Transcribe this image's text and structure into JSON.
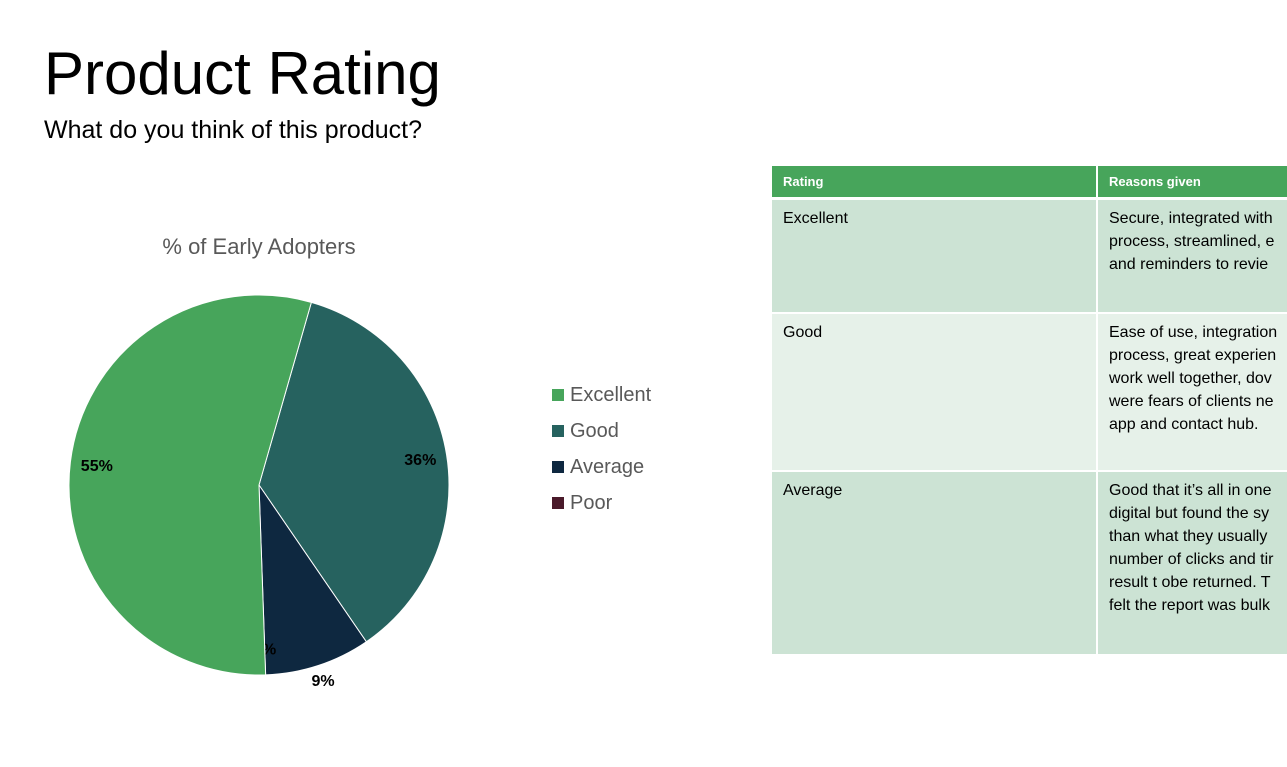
{
  "page": {
    "title": "Product Rating",
    "subtitle": "What do you think of this product?"
  },
  "chart_data": {
    "type": "pie",
    "title": "% of Early Adopters",
    "categories": [
      "Excellent",
      "Good",
      "Average",
      "Poor"
    ],
    "values": [
      55,
      36,
      9,
      0
    ],
    "data_labels": [
      "55%",
      "36%",
      "9%",
      "0%"
    ],
    "colors": [
      "#47a55b",
      "#26625f",
      "#0e2840",
      "#4a1a2a"
    ],
    "legend_position": "right"
  },
  "table": {
    "headers": [
      "Rating",
      "Reasons given"
    ],
    "rows": [
      {
        "rating": "Excellent",
        "reasons": "Secure, integrated with\nprocess, streamlined, e\nand reminders to revie"
      },
      {
        "rating": "Good",
        "reasons": "Ease of use, integration\nprocess, great experien\nwork well together, dov\nwere fears of clients ne\napp and contact hub."
      },
      {
        "rating": "Average",
        "reasons": "Good that it’s all in one\ndigital but found the sy\nthan what they usually\nnumber of clicks and tir\nresult t obe returned. T\nfelt the report was bulk"
      }
    ]
  }
}
